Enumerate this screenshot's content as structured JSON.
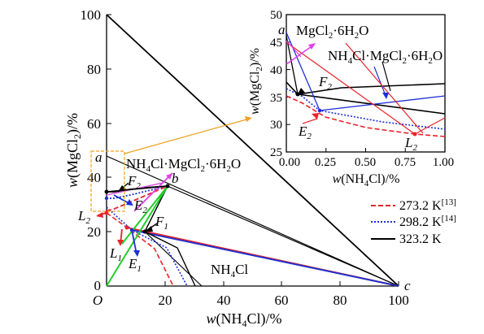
{
  "main": {
    "y_ticks": [
      "100",
      "80",
      "60",
      "40",
      "20",
      "0"
    ],
    "x_ticks": [
      "20",
      "40",
      "60",
      "80",
      "100"
    ],
    "origin_label": "O",
    "x_label": {
      "pre": "w",
      "mid": "(NH",
      "sub": "4",
      "post": "Cl)/%"
    },
    "y_label": {
      "pre": "w",
      "mid": "(MgCl",
      "sub": "2",
      "post": ")/%"
    },
    "point_labels": {
      "a": "a",
      "b": "b",
      "c": "c",
      "L2": "L",
      "L2_sub": "2",
      "L1": "L",
      "L1_sub": "1",
      "E2": "E",
      "E2_sub": "2",
      "E1": "E",
      "E1_sub": "1",
      "F2": "F",
      "F2_sub": "2",
      "F1": "F",
      "F1_sub": "1"
    },
    "phase_labels": {
      "double_salt": {
        "p1": "NH",
        "s1": "4",
        "p2": "Cl·MgCl",
        "s2": "2",
        "p3": "·6H",
        "s3": "2",
        "p4": "O"
      },
      "nh4cl": {
        "p1": "NH",
        "s1": "4",
        "p2": "Cl"
      }
    }
  },
  "inset": {
    "y_ticks": [
      "50",
      "45",
      "40",
      "35",
      "30",
      "25"
    ],
    "x_ticks": [
      "0.00",
      "0.25",
      "0.50",
      "0.75",
      "1.00"
    ],
    "x_label": {
      "pre": "w",
      "mid": "(NH",
      "sub": "4",
      "post": "Cl)/%"
    },
    "y_label": {
      "pre": "w",
      "mid": "(MgCl",
      "sub": "2",
      "post": ")/%"
    },
    "point_labels": {
      "a": "a",
      "F2": "F",
      "F2_sub": "2",
      "E2": "E",
      "E2_sub": "2",
      "L2": "L",
      "L2_sub": "2"
    },
    "phase_labels": {
      "mgcl2": {
        "p1": "MgCl",
        "s1": "2",
        "p2": "·6H",
        "s2": "2",
        "p3": "O"
      },
      "double_salt": {
        "p1": "NH",
        "s1": "4",
        "p2": "Cl·MgCl",
        "s2": "2",
        "p3": "·6H",
        "s3": "2",
        "p4": "O"
      }
    }
  },
  "legend": [
    {
      "label": "273.2 K",
      "ref": "[13]",
      "color": "#e8232a",
      "style": "dashed"
    },
    {
      "label": "298.2 K",
      "ref": "[14]",
      "color": "#1c2fd6",
      "style": "dotted"
    },
    {
      "label": "323.2 K",
      "ref": "",
      "color": "#000000",
      "style": "solid"
    }
  ],
  "colors": {
    "red": "#e8232a",
    "blue": "#1c2fd6",
    "black": "#000000",
    "magenta": "#e040e8",
    "green": "#1ecf2a",
    "orange": "#f0a020"
  }
}
